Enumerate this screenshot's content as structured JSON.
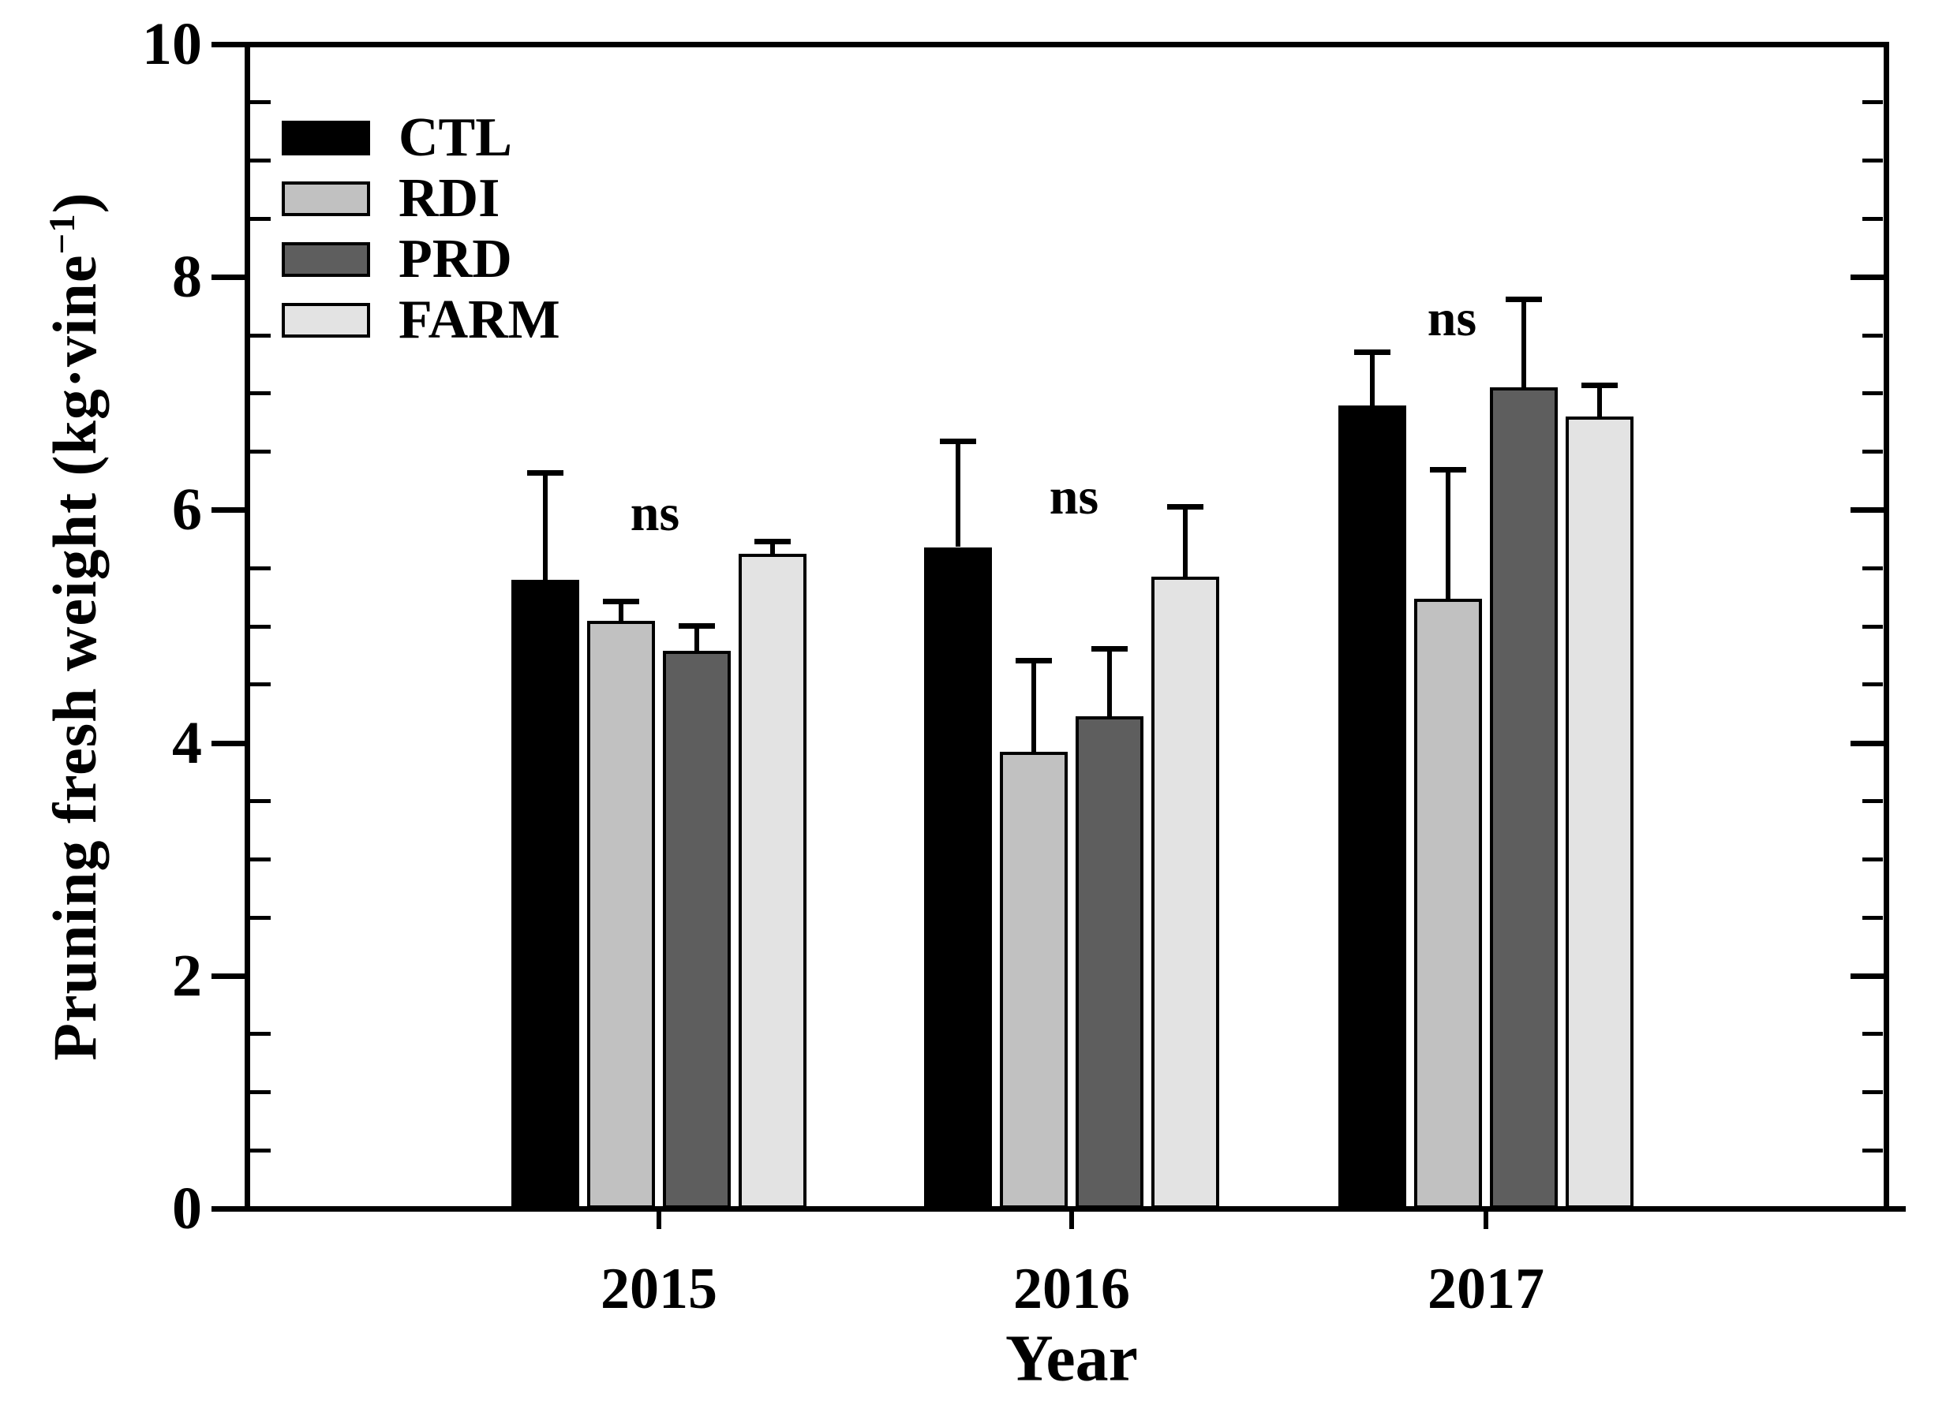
{
  "chart_data": {
    "type": "bar",
    "title": "",
    "xlabel": "Year",
    "ylabel": "Pruning fresh weight (kg·vine⁻¹)",
    "ylabel_parts": {
      "prefix": "Pruning fresh weight (kg·vine",
      "superscript": "−1",
      "suffix": ")"
    },
    "categories": [
      "2015",
      "2016",
      "2017"
    ],
    "series": [
      {
        "name": "CTL",
        "color": "#000000",
        "values": [
          5.4,
          5.68,
          6.9
        ],
        "errors": [
          0.92,
          0.91,
          0.46
        ]
      },
      {
        "name": "RDI",
        "color": "#c1c1c1",
        "values": [
          5.05,
          3.92,
          5.24
        ],
        "errors": [
          0.17,
          0.79,
          1.11
        ]
      },
      {
        "name": "PRD",
        "color": "#5e5e5e",
        "values": [
          4.79,
          4.23,
          7.05
        ],
        "errors": [
          0.22,
          0.58,
          0.76
        ]
      },
      {
        "name": "FARM",
        "color": "#e3e3e3",
        "values": [
          5.62,
          5.43,
          6.8
        ],
        "errors": [
          0.11,
          0.6,
          0.27
        ]
      }
    ],
    "annotations": [
      {
        "text": "ns",
        "group": "2015",
        "y": 5.97,
        "x_offset": -5
      },
      {
        "text": "ns",
        "group": "2016",
        "y": 6.11,
        "x_offset": 3
      },
      {
        "text": "ns",
        "group": "2017",
        "y": 7.64,
        "x_offset": -43
      }
    ],
    "ylim": [
      0,
      10
    ],
    "yticks": [
      0,
      2,
      4,
      6,
      8,
      10
    ],
    "y_minor_step": 0.5,
    "error_bars": "upper-only",
    "grid": false,
    "legend_position": "top-left",
    "axis_color": "#000000",
    "background_color": "#ffffff"
  }
}
